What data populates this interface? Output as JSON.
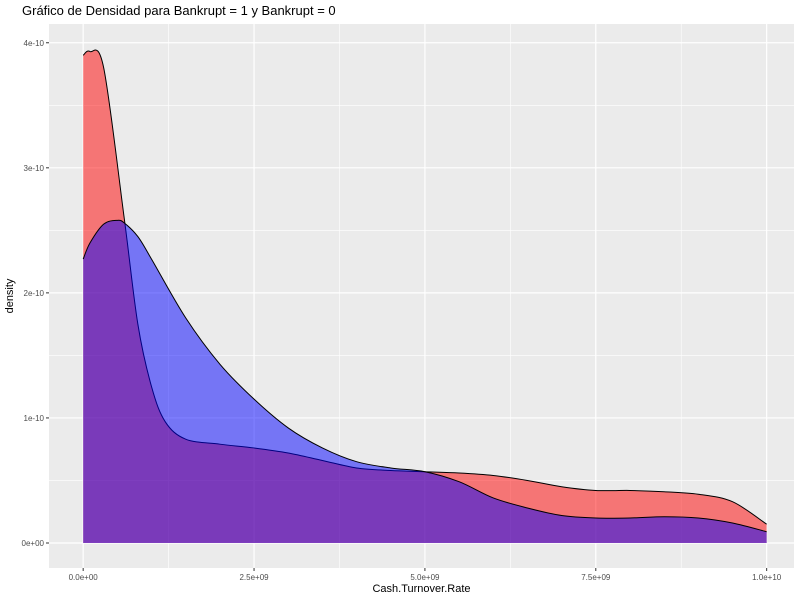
{
  "chart_data": {
    "type": "area",
    "title": "Gráfico de Densidad para Bankrupt = 1 y Bankrupt = 0",
    "xlabel": "Cash.Turnover.Rate",
    "ylabel": "density",
    "xlim": [
      -500000000,
      10400000000
    ],
    "ylim": [
      -2e-11,
      4.15e-10
    ],
    "x_ticks": [
      0,
      2500000000,
      5000000000,
      7500000000,
      10000000000
    ],
    "x_tick_labels": [
      "0.0e+00",
      "2.5e+09",
      "5.0e+09",
      "7.5e+09",
      "1.0e+10"
    ],
    "y_ticks": [
      0,
      1e-10,
      2e-10,
      3e-10,
      4e-10
    ],
    "y_tick_labels": [
      "0e+00",
      "1e-10",
      "2e-10",
      "3e-10",
      "4e-10"
    ],
    "grid": true,
    "legend": "none",
    "series": [
      {
        "color": "#ff0000",
        "fill_opacity": 0.5,
        "x": [
          0,
          100000000,
          300000000,
          600000000,
          800000000,
          1000000000,
          1200000000,
          1500000000,
          2000000000,
          2500000000,
          3000000000,
          3500000000,
          4000000000,
          4500000000,
          5000000000,
          5500000000,
          6000000000,
          6500000000,
          7000000000,
          7500000000,
          8000000000,
          8500000000,
          9000000000,
          9500000000,
          10000000000
        ],
        "y": [
          3.9e-10,
          3.93e-10,
          3.8e-10,
          2.6e-10,
          1.75e-10,
          1.25e-10,
          9.7e-11,
          8.3e-11,
          7.9e-11,
          7.6e-11,
          7.2e-11,
          6.6e-11,
          6e-11,
          5.8e-11,
          5.7e-11,
          5.6e-11,
          5.4e-11,
          5e-11,
          4.5e-11,
          4.2e-11,
          4.2e-11,
          4.1e-11,
          3.9e-11,
          3.3e-11,
          1.5e-11
        ]
      },
      {
        "color": "#0000ff",
        "fill_opacity": 0.5,
        "x": [
          0,
          100000000,
          300000000,
          500000000,
          600000000,
          800000000,
          1000000000,
          1500000000,
          2000000000,
          2500000000,
          3000000000,
          3500000000,
          4000000000,
          4500000000,
          5000000000,
          5500000000,
          6000000000,
          6500000000,
          7000000000,
          7500000000,
          8000000000,
          8500000000,
          9000000000,
          9500000000,
          10000000000
        ],
        "y": [
          2.27e-10,
          2.4e-10,
          2.55e-10,
          2.58e-10,
          2.56e-10,
          2.45e-10,
          2.27e-10,
          1.8e-10,
          1.43e-10,
          1.15e-10,
          9.2e-11,
          7.6e-11,
          6.5e-11,
          6e-11,
          5.7e-11,
          4.9e-11,
          3.6e-11,
          2.8e-11,
          2.2e-11,
          2e-11,
          2e-11,
          2.1e-11,
          2e-11,
          1.6e-11,
          9e-12
        ]
      }
    ]
  }
}
